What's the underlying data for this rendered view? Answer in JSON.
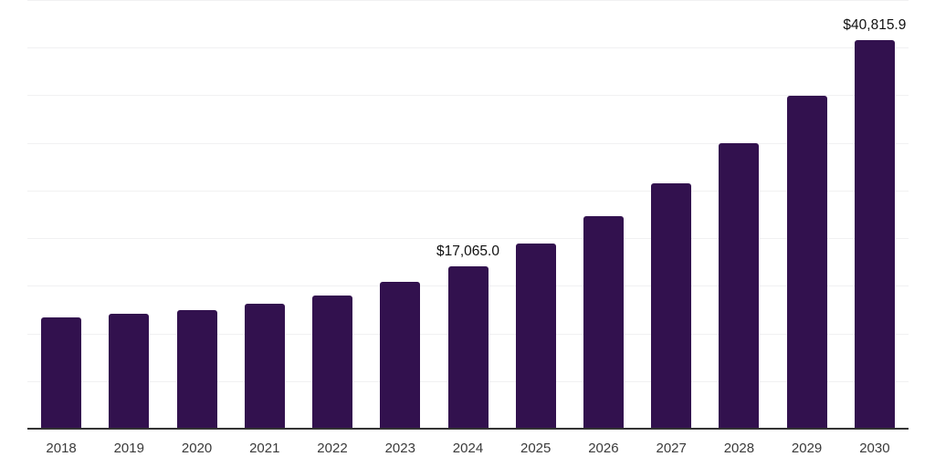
{
  "chart_data": {
    "type": "bar",
    "title": "",
    "xlabel": "",
    "ylabel": "",
    "categories": [
      "2018",
      "2019",
      "2020",
      "2021",
      "2022",
      "2023",
      "2024",
      "2025",
      "2026",
      "2027",
      "2028",
      "2029",
      "2030"
    ],
    "values": [
      11730,
      12115,
      12450,
      13120,
      13985,
      15420,
      17065.0,
      19445,
      22310,
      25750,
      29980,
      34960,
      40815.9
    ],
    "value_labels": [
      "",
      "",
      "",
      "",
      "",
      "",
      "$17,065.0",
      "",
      "",
      "",
      "",
      "",
      "$40,815.9"
    ],
    "ylim": [
      0,
      45000
    ],
    "grid_step": 5000,
    "grid": "horizontal",
    "legend": "none",
    "y_tick_labels_shown": false,
    "colors": {
      "bar": "#32114E",
      "gridline": "#F1F1F2",
      "axis_line": "#333333",
      "tick_label": "#3A3A3A",
      "value_label": "#111111",
      "background": "#FFFFFF"
    }
  }
}
